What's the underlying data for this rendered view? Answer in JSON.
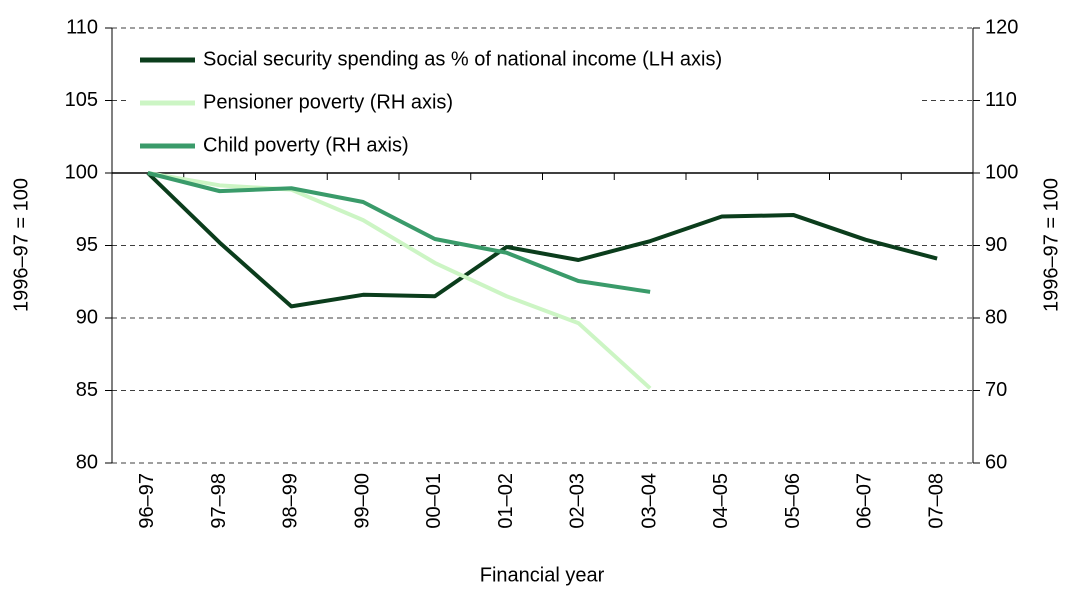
{
  "chart_data": {
    "type": "line",
    "xlabel": "Financial year",
    "ylabel": "1996–97 = 100",
    "y2label": "1996–97 = 100",
    "categories": [
      "96–97",
      "97–98",
      "98–99",
      "99–00",
      "00–01",
      "01–02",
      "02–03",
      "03–04",
      "04–05",
      "05–06",
      "06–07",
      "07–08"
    ],
    "series": [
      {
        "name": "Social security spending as % of national income (LH axis)",
        "color": "#0b3d1c",
        "values": [
          100,
          95.2,
          90.8,
          91.6,
          91.5,
          94.9,
          94.0,
          95.3,
          97.0,
          97.1,
          95.4,
          94.1
        ]
      },
      {
        "name": "Pensioner poverty (RH axis)",
        "color": "#ccf5c4",
        "axis": "y2",
        "values": [
          100,
          98.3,
          97.7,
          93.5,
          87.6,
          83.0,
          79.3,
          70.3,
          null,
          null,
          null,
          null
        ]
      },
      {
        "name": "Child poverty (RH axis)",
        "color": "#3a9b6a",
        "axis": "y2",
        "values": [
          100,
          97.5,
          97.9,
          96.0,
          90.9,
          89.0,
          85.1,
          83.6,
          null,
          null,
          null,
          null
        ]
      }
    ],
    "ylim": [
      80,
      110
    ],
    "yticks": [
      80,
      85,
      90,
      95,
      100,
      105,
      110
    ],
    "y2lim": [
      60,
      120
    ],
    "y2ticks": [
      60,
      70,
      80,
      90,
      100,
      110,
      120
    ],
    "xaxis_crosses": 100,
    "grid": true,
    "legend": "top-left"
  }
}
